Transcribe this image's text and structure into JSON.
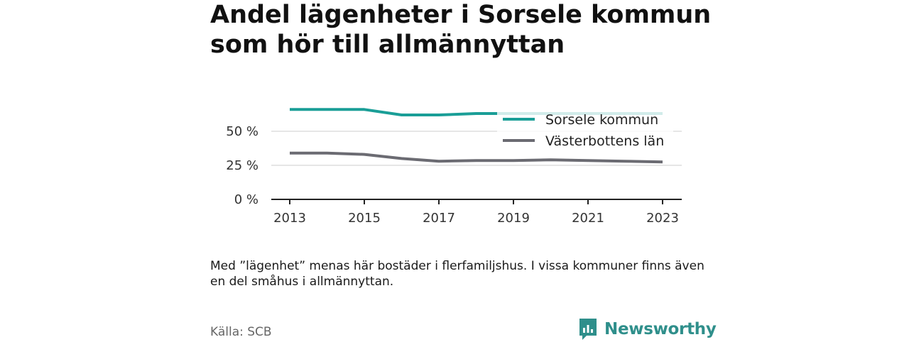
{
  "title": "Andel lägenheter i Sorsele kommun som hör till allmännyttan",
  "note": "Med ”lägenhet” menas här bostäder i flerfamiljshus. I vissa kommuner finns även en del småhus i allmännyttan.",
  "source": "Källa: SCB",
  "brand": {
    "name": "Newsworthy",
    "icon": "newsworthy-logo-icon"
  },
  "colors": {
    "sorsele": "#1a9e97",
    "vasterbotten": "#6b6b72",
    "grid": "#dddddd",
    "axis": "#222222"
  },
  "chart_data": {
    "type": "line",
    "x": [
      2013,
      2014,
      2015,
      2016,
      2017,
      2018,
      2019,
      2020,
      2021,
      2022,
      2023
    ],
    "x_ticks": [
      "2013",
      "2015",
      "2017",
      "2019",
      "2021",
      "2023"
    ],
    "y_ticks": [
      "0 %",
      "25 %",
      "50 %"
    ],
    "ylim": [
      0,
      75
    ],
    "grid": true,
    "legend_position": "top-right",
    "series": [
      {
        "name": "Sorsele kommun",
        "values": [
          66,
          66,
          66,
          62,
          62,
          63,
          63,
          63,
          63,
          63,
          63
        ]
      },
      {
        "name": "Västerbottens län",
        "values": [
          34,
          34,
          33,
          30,
          28,
          28.5,
          28.5,
          29,
          28.5,
          28,
          27.5
        ]
      }
    ]
  }
}
